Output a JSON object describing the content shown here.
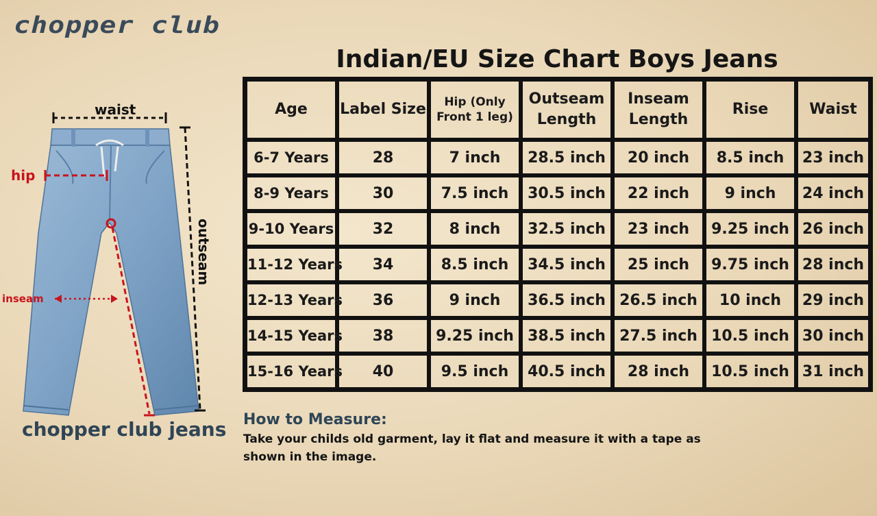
{
  "brand": "chopper club",
  "title": "Indian/EU Size Chart Boys Jeans",
  "table": {
    "headers": [
      "Age",
      "Label Size",
      "Hip (Only Front 1 leg)",
      "Outseam Length",
      "Inseam Length",
      "Rise",
      "Waist"
    ],
    "rows": [
      [
        "6-7 Years",
        "28",
        "7 inch",
        "28.5 inch",
        "20 inch",
        "8.5 inch",
        "23 inch"
      ],
      [
        "8-9 Years",
        "30",
        "7.5 inch",
        "30.5 inch",
        "22 inch",
        "9 inch",
        "24 inch"
      ],
      [
        "9-10 Years",
        "32",
        "8 inch",
        "32.5 inch",
        "23 inch",
        "9.25 inch",
        "26 inch"
      ],
      [
        "11-12 Years",
        "34",
        "8.5 inch",
        "34.5 inch",
        "25 inch",
        "9.75 inch",
        "28 inch"
      ],
      [
        "12-13 Years",
        "36",
        "9 inch",
        "36.5 inch",
        "26.5 inch",
        "10 inch",
        "29 inch"
      ],
      [
        "14-15 Years",
        "38",
        "9.25 inch",
        "38.5 inch",
        "27.5 inch",
        "10.5 inch",
        "30 inch"
      ],
      [
        "15-16 Years",
        "40",
        "9.5 inch",
        "40.5 inch",
        "28 inch",
        "10.5 inch",
        "31 inch"
      ]
    ]
  },
  "measure": {
    "heading": "How to Measure:",
    "text": "Take your childs old garment, lay it flat and measure it with a tape as shown in the image."
  },
  "diagram": {
    "waist_label": "waist",
    "hip_label": "hip",
    "inseam_label": "inseam",
    "outseam_label": "outseam",
    "caption": "chopper club jeans"
  },
  "colors": {
    "denim": "#7fa3c6",
    "measure_red": "#c8141e",
    "heading_blue": "#2f4556"
  }
}
